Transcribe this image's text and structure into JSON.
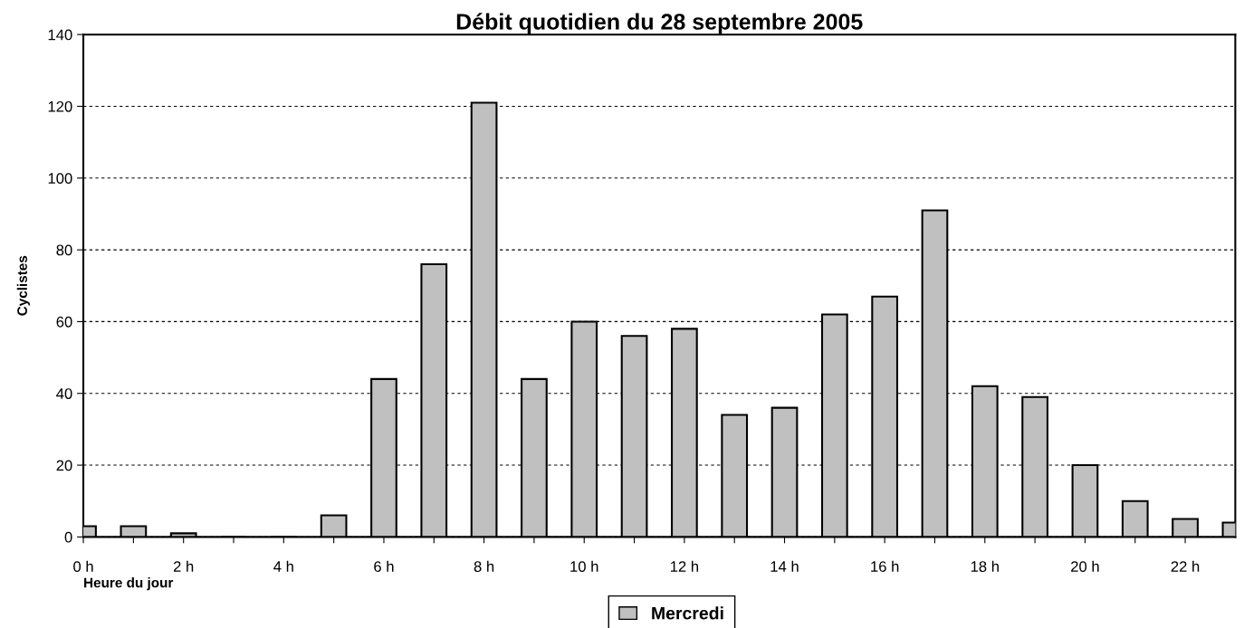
{
  "chart_data": {
    "type": "bar",
    "title": "Débit quotidien du 28 septembre 2005",
    "xlabel": "Heure du jour",
    "ylabel": "Cyclistes",
    "x": [
      0,
      1,
      2,
      3,
      4,
      5,
      6,
      7,
      8,
      9,
      10,
      11,
      12,
      13,
      14,
      15,
      16,
      17,
      18,
      19,
      20,
      21,
      22,
      23
    ],
    "series": [
      {
        "name": "Mercredi",
        "color": "#c0c0c0",
        "values": [
          3,
          3,
          1,
          0,
          0,
          6,
          44,
          76,
          121,
          44,
          60,
          56,
          58,
          34,
          36,
          62,
          67,
          91,
          42,
          39,
          20,
          10,
          5,
          4
        ]
      }
    ],
    "xlim": [
      0,
      23
    ],
    "xticks": [
      {
        "value": 0,
        "label": "0 h"
      },
      {
        "value": 1,
        "label": null
      },
      {
        "value": 2,
        "label": "2 h"
      },
      {
        "value": 3,
        "label": null
      },
      {
        "value": 4,
        "label": "4 h"
      },
      {
        "value": 5,
        "label": null
      },
      {
        "value": 6,
        "label": "6 h"
      },
      {
        "value": 7,
        "label": null
      },
      {
        "value": 8,
        "label": "8 h"
      },
      {
        "value": 9,
        "label": null
      },
      {
        "value": 10,
        "label": "10 h"
      },
      {
        "value": 11,
        "label": null
      },
      {
        "value": 12,
        "label": "12 h"
      },
      {
        "value": 13,
        "label": null
      },
      {
        "value": 14,
        "label": "14 h"
      },
      {
        "value": 15,
        "label": null
      },
      {
        "value": 16,
        "label": "16 h"
      },
      {
        "value": 17,
        "label": null
      },
      {
        "value": 18,
        "label": "18 h"
      },
      {
        "value": 19,
        "label": null
      },
      {
        "value": 20,
        "label": "20 h"
      },
      {
        "value": 21,
        "label": null
      },
      {
        "value": 22,
        "label": "22 h"
      }
    ],
    "ylim": [
      0,
      140
    ],
    "yticks": [
      0,
      20,
      40,
      60,
      80,
      100,
      120,
      140
    ],
    "grid": "y",
    "legend": "bottom"
  }
}
